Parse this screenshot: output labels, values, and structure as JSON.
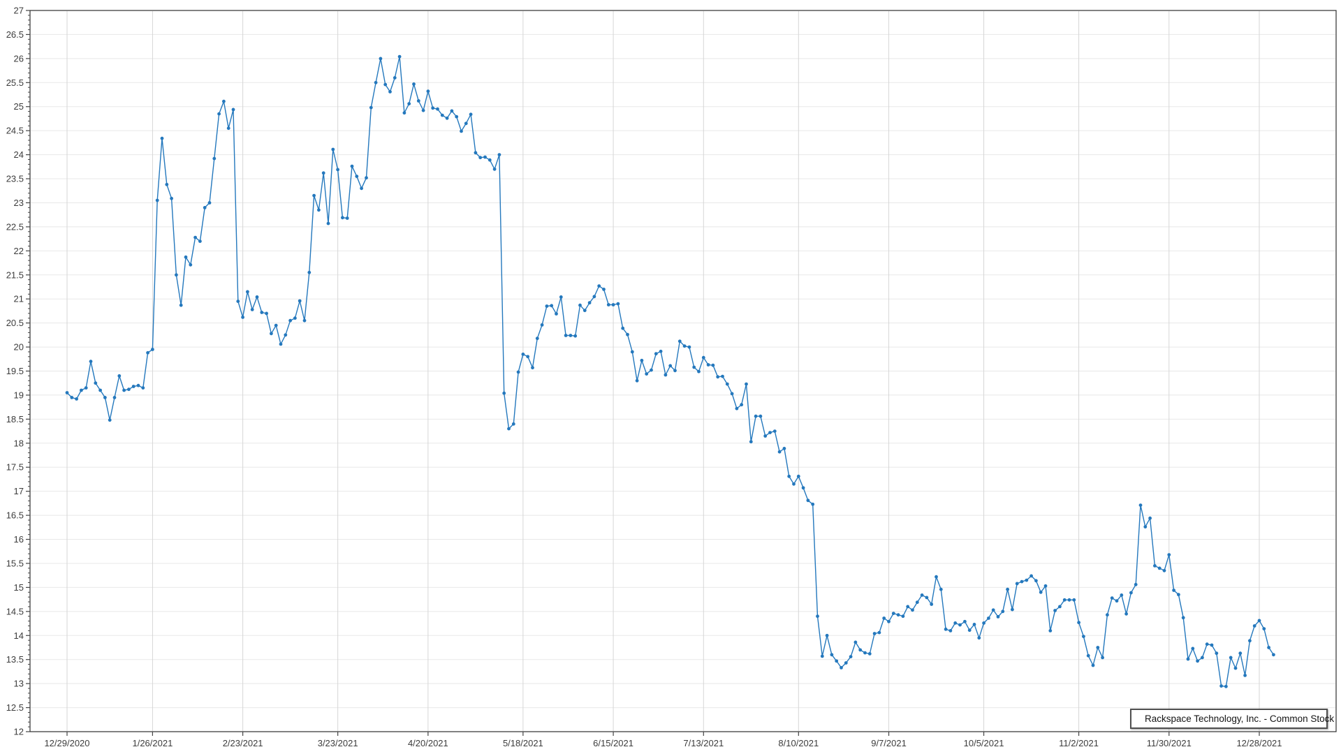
{
  "legend": {
    "label": "Rackspace Technology, Inc. - Common Stock"
  },
  "chart_data": {
    "type": "line",
    "title": "",
    "xlabel": "",
    "ylabel": "",
    "ylim": [
      12,
      27
    ],
    "y_tick_step": 0.5,
    "y_minor_tick_step": 0.1,
    "grid": true,
    "legend_position": "bottom-right",
    "y_tick_labels": [
      "27",
      "26.5",
      "26",
      "25.5",
      "25",
      "24.5",
      "24",
      "23.5",
      "23",
      "22.5",
      "22",
      "21.5",
      "21",
      "20.5",
      "20",
      "19.5",
      "19",
      "18.5",
      "18",
      "17.5",
      "17",
      "16.5",
      "16",
      "15.5",
      "15",
      "14.5",
      "14",
      "13.5",
      "13",
      "12.5",
      "12"
    ],
    "x_ticks": [
      "12/29/2020",
      "1/26/2021",
      "2/23/2021",
      "3/23/2021",
      "4/20/2021",
      "5/18/2021",
      "6/15/2021",
      "7/13/2021",
      "8/10/2021",
      "9/7/2021",
      "10/5/2021",
      "11/2/2021",
      "11/30/2021",
      "12/28/2021"
    ],
    "colors": {
      "line": "#2478bd",
      "marker": "#2478bd",
      "grid_h": "#e8e8e8",
      "grid_v": "#d6d6d6",
      "axis": "#2e2e2e",
      "tick": "#444444",
      "text": "#3c3c3c",
      "legend_border": "#4f4f4f",
      "background": "#ffffff"
    },
    "series": [
      {
        "name": "Rackspace Technology, Inc. - Common Stock",
        "x": [
          "12/29/2020",
          "12/30/2020",
          "12/31/2020",
          "1/4/2021",
          "1/5/2021",
          "1/6/2021",
          "1/7/2021",
          "1/8/2021",
          "1/11/2021",
          "1/12/2021",
          "1/13/2021",
          "1/14/2021",
          "1/15/2021",
          "1/19/2021",
          "1/20/2021",
          "1/21/2021",
          "1/22/2021",
          "1/25/2021",
          "1/26/2021",
          "1/27/2021",
          "1/28/2021",
          "1/29/2021",
          "2/1/2021",
          "2/2/2021",
          "2/3/2021",
          "2/4/2021",
          "2/5/2021",
          "2/8/2021",
          "2/9/2021",
          "2/10/2021",
          "2/11/2021",
          "2/12/2021",
          "2/16/2021",
          "2/17/2021",
          "2/18/2021",
          "2/19/2021",
          "2/22/2021",
          "2/23/2021",
          "2/24/2021",
          "2/25/2021",
          "2/26/2021",
          "3/1/2021",
          "3/2/2021",
          "3/3/2021",
          "3/4/2021",
          "3/5/2021",
          "3/8/2021",
          "3/9/2021",
          "3/10/2021",
          "3/11/2021",
          "3/12/2021",
          "3/15/2021",
          "3/16/2021",
          "3/17/2021",
          "3/18/2021",
          "3/19/2021",
          "3/22/2021",
          "3/23/2021",
          "3/24/2021",
          "3/25/2021",
          "3/26/2021",
          "3/29/2021",
          "3/30/2021",
          "3/31/2021",
          "4/1/2021",
          "4/5/2021",
          "4/6/2021",
          "4/7/2021",
          "4/8/2021",
          "4/9/2021",
          "4/12/2021",
          "4/13/2021",
          "4/14/2021",
          "4/15/2021",
          "4/16/2021",
          "4/19/2021",
          "4/20/2021",
          "4/21/2021",
          "4/22/2021",
          "4/23/2021",
          "4/26/2021",
          "4/27/2021",
          "4/28/2021",
          "4/29/2021",
          "4/30/2021",
          "5/3/2021",
          "5/4/2021",
          "5/5/2021",
          "5/6/2021",
          "5/7/2021",
          "5/10/2021",
          "5/11/2021",
          "5/12/2021",
          "5/13/2021",
          "5/14/2021",
          "5/17/2021",
          "5/18/2021",
          "5/19/2021",
          "5/20/2021",
          "5/21/2021",
          "5/24/2021",
          "5/25/2021",
          "5/26/2021",
          "5/27/2021",
          "5/28/2021",
          "6/1/2021",
          "6/2/2021",
          "6/3/2021",
          "6/4/2021",
          "6/7/2021",
          "6/8/2021",
          "6/9/2021",
          "6/10/2021",
          "6/11/2021",
          "6/14/2021",
          "6/15/2021",
          "6/16/2021",
          "6/17/2021",
          "6/18/2021",
          "6/21/2021",
          "6/22/2021",
          "6/23/2021",
          "6/24/2021",
          "6/25/2021",
          "6/28/2021",
          "6/29/2021",
          "6/30/2021",
          "7/1/2021",
          "7/2/2021",
          "7/6/2021",
          "7/7/2021",
          "7/8/2021",
          "7/9/2021",
          "7/12/2021",
          "7/13/2021",
          "7/14/2021",
          "7/15/2021",
          "7/16/2021",
          "7/19/2021",
          "7/20/2021",
          "7/21/2021",
          "7/22/2021",
          "7/23/2021",
          "7/26/2021",
          "7/27/2021",
          "7/28/2021",
          "7/29/2021",
          "7/30/2021",
          "8/2/2021",
          "8/3/2021",
          "8/4/2021",
          "8/5/2021",
          "8/6/2021",
          "8/9/2021",
          "8/10/2021",
          "8/11/2021",
          "8/12/2021",
          "8/13/2021",
          "8/16/2021",
          "8/17/2021",
          "8/18/2021",
          "8/19/2021",
          "8/20/2021",
          "8/23/2021",
          "8/24/2021",
          "8/25/2021",
          "8/26/2021",
          "8/27/2021",
          "8/30/2021",
          "8/31/2021",
          "9/1/2021",
          "9/2/2021",
          "9/3/2021",
          "9/7/2021",
          "9/8/2021",
          "9/9/2021",
          "9/10/2021",
          "9/13/2021",
          "9/14/2021",
          "9/15/2021",
          "9/16/2021",
          "9/17/2021",
          "9/20/2021",
          "9/21/2021",
          "9/22/2021",
          "9/23/2021",
          "9/24/2021",
          "9/27/2021",
          "9/28/2021",
          "9/29/2021",
          "9/30/2021",
          "10/1/2021",
          "10/4/2021",
          "10/5/2021",
          "10/6/2021",
          "10/7/2021",
          "10/8/2021",
          "10/11/2021",
          "10/12/2021",
          "10/13/2021",
          "10/14/2021",
          "10/15/2021",
          "10/18/2021",
          "10/19/2021",
          "10/20/2021",
          "10/21/2021",
          "10/22/2021",
          "10/25/2021",
          "10/26/2021",
          "10/27/2021",
          "10/28/2021",
          "10/29/2021",
          "11/1/2021",
          "11/2/2021",
          "11/3/2021",
          "11/4/2021",
          "11/5/2021",
          "11/8/2021",
          "11/9/2021",
          "11/10/2021",
          "11/11/2021",
          "11/12/2021",
          "11/15/2021",
          "11/16/2021",
          "11/17/2021",
          "11/18/2021",
          "11/19/2021",
          "11/22/2021",
          "11/23/2021",
          "11/24/2021",
          "11/26/2021",
          "11/29/2021",
          "11/30/2021",
          "12/1/2021",
          "12/2/2021",
          "12/3/2021",
          "12/6/2021",
          "12/7/2021",
          "12/8/2021",
          "12/9/2021",
          "12/10/2021",
          "12/13/2021",
          "12/14/2021",
          "12/15/2021",
          "12/16/2021",
          "12/17/2021",
          "12/20/2021",
          "12/21/2021",
          "12/22/2021",
          "12/23/2021",
          "12/27/2021",
          "12/28/2021",
          "12/29/2021",
          "12/30/2021",
          "12/31/2021"
        ],
        "values": [
          19.05,
          18.95,
          18.92,
          19.1,
          19.15,
          19.7,
          19.25,
          19.1,
          18.95,
          18.48,
          18.95,
          19.4,
          19.1,
          19.12,
          19.18,
          19.2,
          19.15,
          19.88,
          19.95,
          23.05,
          24.34,
          23.38,
          23.09,
          21.5,
          20.87,
          21.87,
          21.71,
          22.28,
          22.2,
          22.9,
          23.0,
          23.92,
          24.85,
          25.11,
          24.55,
          24.94,
          20.95,
          20.62,
          21.15,
          20.78,
          21.04,
          20.72,
          20.7,
          20.28,
          20.45,
          20.06,
          20.25,
          20.55,
          20.6,
          20.96,
          20.55,
          21.55,
          23.15,
          22.85,
          23.62,
          22.57,
          24.11,
          23.69,
          22.69,
          22.68,
          23.76,
          23.55,
          23.3,
          23.52,
          24.98,
          25.5,
          26.0,
          25.46,
          25.31,
          25.6,
          26.04,
          24.87,
          25.06,
          25.47,
          25.12,
          24.92,
          25.32,
          24.97,
          24.95,
          24.82,
          24.76,
          24.91,
          24.79,
          24.49,
          24.65,
          24.84,
          24.04,
          23.94,
          23.95,
          23.89,
          23.7,
          24.0,
          19.04,
          18.3,
          18.4,
          19.48,
          19.85,
          19.8,
          19.57,
          20.18,
          20.46,
          20.85,
          20.86,
          20.69,
          21.04,
          20.24,
          20.24,
          20.23,
          20.87,
          20.76,
          20.92,
          21.05,
          21.27,
          21.2,
          20.88,
          20.88,
          20.9,
          20.39,
          20.26,
          19.9,
          19.3,
          19.72,
          19.44,
          19.52,
          19.86,
          19.91,
          19.42,
          19.61,
          19.51,
          20.12,
          20.02,
          20.0,
          19.58,
          19.49,
          19.78,
          19.63,
          19.62,
          19.38,
          19.39,
          19.23,
          19.03,
          18.72,
          18.8,
          19.23,
          18.03,
          18.56,
          18.56,
          18.15,
          18.22,
          18.25,
          17.82,
          17.89,
          17.31,
          17.15,
          17.31,
          17.07,
          16.81,
          16.73,
          14.4,
          13.57,
          14.0,
          13.6,
          13.47,
          13.33,
          13.43,
          13.56,
          13.86,
          13.7,
          13.64,
          13.62,
          14.04,
          14.06,
          14.36,
          14.29,
          14.46,
          14.43,
          14.4,
          14.6,
          14.53,
          14.69,
          14.84,
          14.79,
          14.65,
          15.22,
          14.96,
          14.13,
          14.1,
          14.26,
          14.22,
          14.29,
          14.11,
          14.23,
          13.95,
          14.26,
          14.36,
          14.53,
          14.39,
          14.5,
          14.96,
          14.54,
          15.08,
          15.12,
          15.15,
          15.24,
          15.14,
          14.9,
          15.03,
          14.1,
          14.52,
          14.6,
          14.74,
          14.74,
          14.74,
          14.27,
          13.98,
          13.58,
          13.38,
          13.75,
          13.54,
          14.43,
          14.78,
          14.72,
          14.84,
          14.45,
          14.89,
          15.06,
          16.71,
          16.26,
          16.44,
          15.45,
          15.4,
          15.35,
          15.68,
          14.94,
          14.85,
          14.37,
          13.51,
          13.73,
          13.47,
          13.54,
          13.82,
          13.8,
          13.63,
          12.95,
          12.94,
          13.54,
          13.32,
          13.63,
          13.17,
          13.89,
          14.2,
          14.31,
          14.14,
          13.75,
          13.6
        ]
      }
    ]
  }
}
